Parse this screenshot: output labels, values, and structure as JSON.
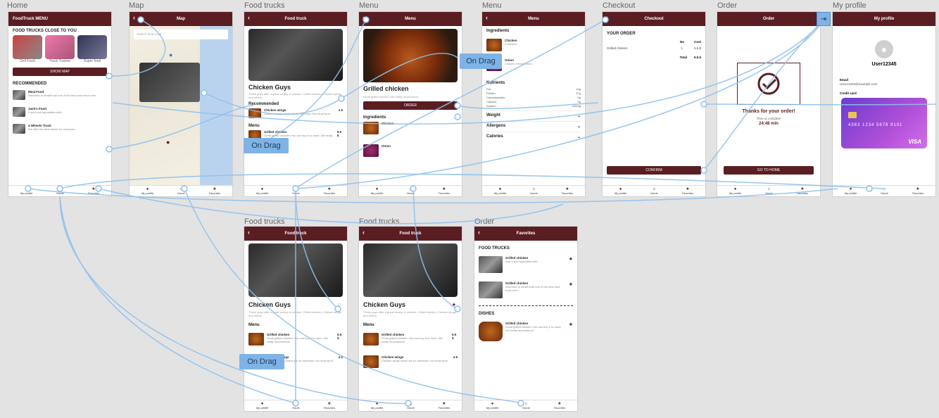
{
  "frame_labels": [
    "Home",
    "Map",
    "Food trucks",
    "Menu",
    "Menu",
    "Checkout",
    "Order",
    "My profile",
    "Food trucks",
    "Food trucks",
    "Order"
  ],
  "nav": {
    "profile": "My profile",
    "home": "Home",
    "favorites": "Favorites"
  },
  "home": {
    "header": "FoodTruck MENU",
    "close_heading": "FOOD TRUCKS CLOSE TO YOU",
    "trucks": [
      "Deli Food",
      "Truck Tracker",
      "Super food"
    ],
    "show_map": "SHOW MAP",
    "recommended": "RECOMMENDED",
    "items": [
      {
        "name": "Meal Food",
        "desc": "Welcome to MealFood! one of the best food truck ever..."
      },
      {
        "name": "Jack's Food",
        "desc": "Food truck specialties with..."
      },
      {
        "name": "4 Wheels Truck",
        "desc": "We offer the best dishes for everyone..."
      }
    ]
  },
  "map": {
    "header": "Map",
    "search_placeholder": "Search food truck..."
  },
  "foodtruck": {
    "header": "Food truck",
    "name": "Chicken Guys",
    "desc": "These guys offer a great variety of chicken. Grilled chicken, Chicken wings and others.",
    "recommended": "Recommended",
    "menu": "Menu",
    "items": [
      {
        "name": "Chicken wings",
        "desc": "Chicken wings which are so delicious! You must try it!",
        "price": "4 $"
      },
      {
        "name": "Grilled chicken",
        "desc": "Great grilled chicken! You can buy 5 or more. We really recommend!",
        "price": "5.5 $"
      }
    ]
  },
  "menu1": {
    "header": "Menu",
    "name": "Grilled chicken",
    "desc": "Great grilled chicken! We really recommend!",
    "order": "ORDER",
    "ingredients": "Ingredients",
    "ing": [
      {
        "name": "Chicken"
      },
      {
        "name": "Onion"
      }
    ]
  },
  "menu2": {
    "header": "Menu",
    "ingredients": "Ingredients",
    "ing": [
      {
        "name": "Chicken",
        "desc": "2 chicken"
      },
      {
        "name": "Onion",
        "desc": "4 slices of fresh onion"
      }
    ],
    "nutrients": "Nutrients",
    "nut": [
      [
        "Fat",
        "14g"
      ],
      [
        "Protein",
        "27g"
      ],
      [
        "Carbohydrates",
        "0g"
      ],
      [
        "Calcium",
        "0g"
      ],
      [
        "Sodium",
        "160mg"
      ]
    ],
    "acc": [
      "Weight",
      "Allergens",
      "Calories"
    ]
  },
  "checkout": {
    "header": "Checkout",
    "your_order": "YOUR ORDER",
    "col_no": "No",
    "col_cost": "Cost",
    "item": "Grilled chicken",
    "qty": "1",
    "cost": "5.5 $",
    "total_label": "Total",
    "total": "5.5 $",
    "confirm": "CONFIRM"
  },
  "order": {
    "header": "Order",
    "thanks": "Thanks for your order!",
    "time_label": "Time to complete",
    "time": "24:48 min",
    "go_home": "GO TO HOME"
  },
  "profile": {
    "header": "My profile",
    "user": "User12345",
    "email_label": "Email",
    "email": "User12345@example.com",
    "card_label": "Credit card",
    "card_number": "4363 1234 5678 9101",
    "card_brand": "VISA"
  },
  "favorites": {
    "header": "Favorites",
    "trucks_heading": "FOOD TRUCKS",
    "dishes_heading": "DISHES",
    "trucks": [
      {
        "name": "Grilled chicken",
        "desc": "Just a food specialist with..."
      },
      {
        "name": "Grilled chicken",
        "desc": "Welcome to MealFood! one of the best food truck ever..."
      }
    ],
    "dish": {
      "name": "Grilled chicken",
      "desc": "Great grilled chicken! You can buy 5 or more. We really recommend!"
    }
  },
  "on_drag": "On Drag",
  "colors": {
    "brand": "#5a1e22",
    "wire": "#8ec0ee",
    "canvas": "#e3e3e3"
  }
}
